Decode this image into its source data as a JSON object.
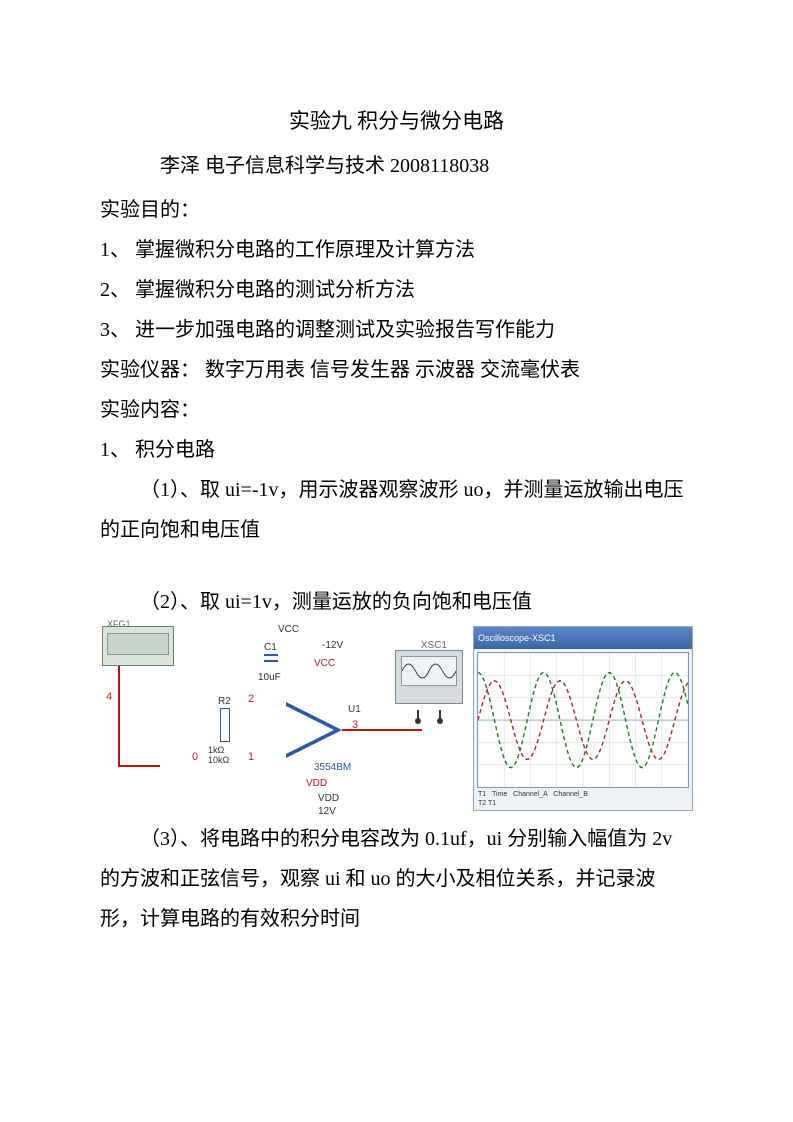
{
  "title": "实验九 积分与微分电路",
  "author": "李泽 电子信息科学与技术 2008118038",
  "sections": {
    "purpose_head": "实验目的：",
    "purpose_1": "1、 掌握微积分电路的工作原理及计算方法",
    "purpose_2": "2、 掌握微积分电路的测试分析方法",
    "purpose_3": "3、 进一步加强电路的调整测试及实验报告写作能力",
    "instruments": "实验仪器： 数字万用表 信号发生器 示波器 交流毫伏表",
    "content_head": "实验内容：",
    "content_1": "1、 积分电路",
    "step_1": "（1）、取 ui=-1v，用示波器观察波形 uo，并测量运放输出电压的正向饱和电压值",
    "step_2": "（2）、取 ui=1v，测量运放的负向饱和电压值",
    "step_3": "（3）、将电路中的积分电容改为 0.1uf，ui 分别输入幅值为 2v 的方波和正弦信号，观察 ui 和 uo 的大小及相位关系，并记录波形，计算电路的有效积分时间"
  },
  "circuit": {
    "xfg_label": "XFG1",
    "vcc": "VCC",
    "vdd": "VDD",
    "neg12": "-12V",
    "pos12": "12V",
    "c1": "C1",
    "c1_val": "10uF",
    "r2": "R2",
    "r2_val_a": "1kΩ",
    "r2_val_b": "10kΩ",
    "opamp_ref": "U1",
    "opamp_part": "3554BM",
    "xsc": "XSC1",
    "node4": "4",
    "node0": "0",
    "node1": "1",
    "node2": "2",
    "node3": "3"
  },
  "scope": {
    "title": "Oscilloscope-XSC1",
    "waves": {
      "background": "#ffffff",
      "grid_color": "#d4dde6",
      "axis_color": "#9fb0c2",
      "series": [
        {
          "color": "#b02222",
          "dash": "4 3",
          "amp": 38,
          "phase": 0,
          "cycles": 3.2
        },
        {
          "color": "#1e7a1e",
          "dash": "4 3",
          "amp": 46,
          "phase": 90,
          "cycles": 3.2
        }
      ]
    },
    "meta_time": "Time",
    "meta_cha": "Channel_A",
    "meta_chb": "Channel_B",
    "meta_t1": "T1",
    "meta_t2": "T2 T1"
  },
  "colors": {
    "wire_red": "#b01818",
    "wire_blue": "#2a5aa0",
    "text": "#000000"
  }
}
